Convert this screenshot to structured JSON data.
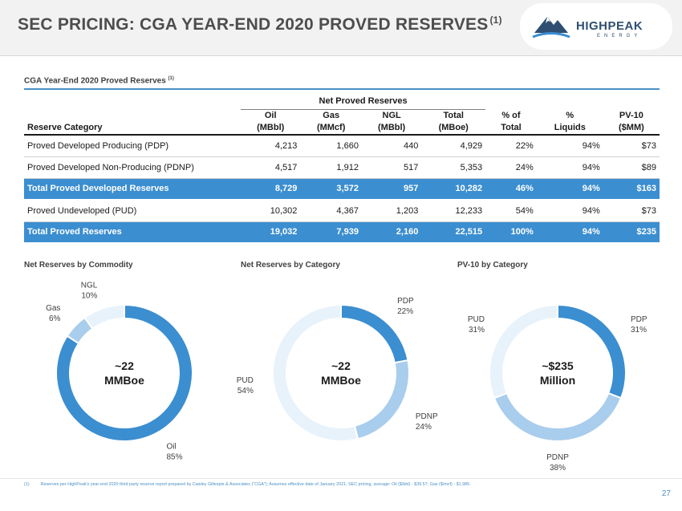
{
  "header": {
    "title": "SEC PRICING: CGA YEAR-END 2020 PROVED RESERVES",
    "title_sup": "(1)",
    "logo_name": "HIGHPEAK",
    "logo_sub": "ENERGY",
    "logo_icon": "mountain-peak-icon",
    "brand_color": "#2f4f72"
  },
  "section": {
    "title": "CGA Year-End 2020 Proved Reserves",
    "title_sup": "(1)"
  },
  "table": {
    "group_header": "Net Proved Reserves",
    "columns": [
      {
        "line1": "",
        "line2": "Reserve Category"
      },
      {
        "line1": "Oil",
        "line2": "(MBbl)"
      },
      {
        "line1": "Gas",
        "line2": "(MMcf)"
      },
      {
        "line1": "NGL",
        "line2": "(MBbl)"
      },
      {
        "line1": "Total",
        "line2": "(MBoe)"
      },
      {
        "line1": "% of",
        "line2": "Total"
      },
      {
        "line1": "%",
        "line2": "Liquids"
      },
      {
        "line1": "PV-10",
        "line2": "($MM)"
      }
    ],
    "rows": [
      {
        "category": "Proved Developed Producing (PDP)",
        "oil": "4,213",
        "gas": "1,660",
        "ngl": "440",
        "total": "4,929",
        "pct_total": "22%",
        "pct_liquids": "94%",
        "pv10": "$73",
        "highlight": false
      },
      {
        "category": "Proved Developed Non-Producing (PDNP)",
        "oil": "4,517",
        "gas": "1,912",
        "ngl": "517",
        "total": "5,353",
        "pct_total": "24%",
        "pct_liquids": "94%",
        "pv10": "$89",
        "highlight": false
      },
      {
        "category": "Total Proved Developed Reserves",
        "oil": "8,729",
        "gas": "3,572",
        "ngl": "957",
        "total": "10,282",
        "pct_total": "46%",
        "pct_liquids": "94%",
        "pv10": "$163",
        "highlight": true
      },
      {
        "category": "Proved Undeveloped (PUD)",
        "oil": "10,302",
        "gas": "4,367",
        "ngl": "1,203",
        "total": "12,233",
        "pct_total": "54%",
        "pct_liquids": "94%",
        "pv10": "$73",
        "highlight": false
      },
      {
        "category": "Total Proved Reserves",
        "oil": "19,032",
        "gas": "7,939",
        "ngl": "2,160",
        "total": "22,515",
        "pct_total": "100%",
        "pct_liquids": "94%",
        "pv10": "$235",
        "highlight": true
      }
    ]
  },
  "chart_data": [
    {
      "type": "pie",
      "title": "Net Reserves by Commodity",
      "center_line1": "~22",
      "center_line2": "MMBoe",
      "slices": [
        {
          "label": "Oil",
          "pct_label": "85%",
          "value": 85,
          "color": "#3b8ed0"
        },
        {
          "label": "Gas",
          "pct_label": "6%",
          "value": 6,
          "color": "#a9cdec"
        },
        {
          "label": "NGL",
          "pct_label": "10%",
          "value": 10,
          "color": "#e8f2fb"
        }
      ]
    },
    {
      "type": "pie",
      "title": "Net Reserves by Category",
      "center_line1": "~22",
      "center_line2": "MMBoe",
      "slices": [
        {
          "label": "PDP",
          "pct_label": "22%",
          "value": 22,
          "color": "#3b8ed0"
        },
        {
          "label": "PDNP",
          "pct_label": "24%",
          "value": 24,
          "color": "#a9cdec"
        },
        {
          "label": "PUD",
          "pct_label": "54%",
          "value": 54,
          "color": "#e8f2fb"
        }
      ]
    },
    {
      "type": "pie",
      "title": "PV-10 by Category",
      "center_line1": "~$235",
      "center_line2": "Million",
      "slices": [
        {
          "label": "PDP",
          "pct_label": "31%",
          "value": 31,
          "color": "#3b8ed0"
        },
        {
          "label": "PDNP",
          "pct_label": "38%",
          "value": 38,
          "color": "#a9cdec"
        },
        {
          "label": "PUD",
          "pct_label": "31%",
          "value": 31,
          "color": "#e8f2fb"
        }
      ]
    }
  ],
  "footnote": {
    "marker": "(1)",
    "text": "Reserves per HighPeak's year-end 2020 third party reserve report prepared by Cawley Gillespie & Associates (\"CGA\"); Assumes effective date of January 2021; SEC pricing, average: Oil ($/bbl) - $39.57; Gas ($/mcf) - $1.985."
  },
  "page_number": "27"
}
